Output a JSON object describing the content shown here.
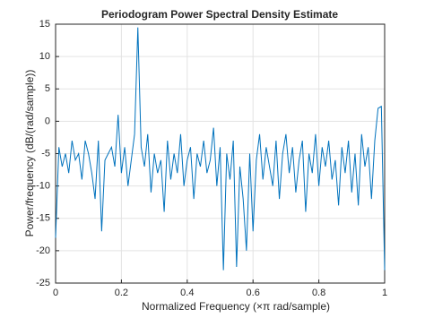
{
  "chart_data": {
    "type": "line",
    "title": "Periodogram Power Spectral Density Estimate",
    "xlabel": "Normalized  Frequency    (×π  rad/sample)",
    "ylabel": "Power/frequency (dB/(rad/sample))",
    "xlim": [
      0,
      1
    ],
    "ylim": [
      -25,
      15
    ],
    "xticks": [
      0,
      0.2,
      0.4,
      0.6,
      0.8,
      1
    ],
    "yticks": [
      -25,
      -20,
      -15,
      -10,
      -5,
      0,
      5,
      10,
      15
    ],
    "grid": true,
    "x": [
      0,
      0.01,
      0.02,
      0.03,
      0.04,
      0.05,
      0.06,
      0.07,
      0.08,
      0.09,
      0.1,
      0.11,
      0.12,
      0.13,
      0.14,
      0.15,
      0.16,
      0.17,
      0.18,
      0.19,
      0.2,
      0.21,
      0.22,
      0.23,
      0.24,
      0.25,
      0.26,
      0.27,
      0.28,
      0.29,
      0.3,
      0.31,
      0.32,
      0.33,
      0.34,
      0.35,
      0.36,
      0.37,
      0.38,
      0.39,
      0.4,
      0.41,
      0.42,
      0.43,
      0.44,
      0.45,
      0.46,
      0.47,
      0.48,
      0.49,
      0.5,
      0.51,
      0.52,
      0.53,
      0.54,
      0.55,
      0.56,
      0.57,
      0.58,
      0.59,
      0.6,
      0.61,
      0.62,
      0.63,
      0.64,
      0.65,
      0.66,
      0.67,
      0.68,
      0.69,
      0.7,
      0.71,
      0.72,
      0.73,
      0.74,
      0.75,
      0.76,
      0.77,
      0.78,
      0.79,
      0.8,
      0.81,
      0.82,
      0.83,
      0.84,
      0.85,
      0.86,
      0.87,
      0.88,
      0.89,
      0.9,
      0.91,
      0.92,
      0.93,
      0.94,
      0.95,
      0.96,
      0.97,
      0.98,
      0.99,
      1
    ],
    "series": [
      {
        "color": "#0072bd",
        "values": [
          -18,
          -4,
          -7,
          -5,
          -8,
          -3,
          -6,
          -5,
          -9,
          -3,
          -5,
          -8,
          -12,
          -3,
          -17,
          -6,
          -5,
          -4,
          -7,
          1,
          -8,
          -4,
          -10,
          -6,
          -2,
          14.5,
          -4,
          -7,
          -2,
          -11,
          -5,
          -8,
          -6,
          -14,
          -3,
          -9,
          -5,
          -8,
          -2,
          -10,
          -6,
          -4,
          -12,
          -5,
          -7,
          -3,
          -8,
          -6,
          -1,
          -10,
          -4,
          -23,
          -5,
          -9,
          -3,
          -22.5,
          -7,
          -12,
          -20,
          -5,
          -17,
          -6,
          -2,
          -9,
          -4,
          -7,
          -10,
          -3,
          -12,
          -5,
          -2,
          -8,
          -4,
          -11,
          -6,
          -3,
          -14,
          -5,
          -8,
          -2,
          -10,
          -4,
          -7,
          -3,
          -9,
          -6,
          -13,
          -4,
          -8,
          -3,
          -11,
          -5,
          -13,
          -2,
          -7,
          -4,
          -12,
          -3,
          2,
          2.3,
          -23
        ]
      }
    ]
  }
}
